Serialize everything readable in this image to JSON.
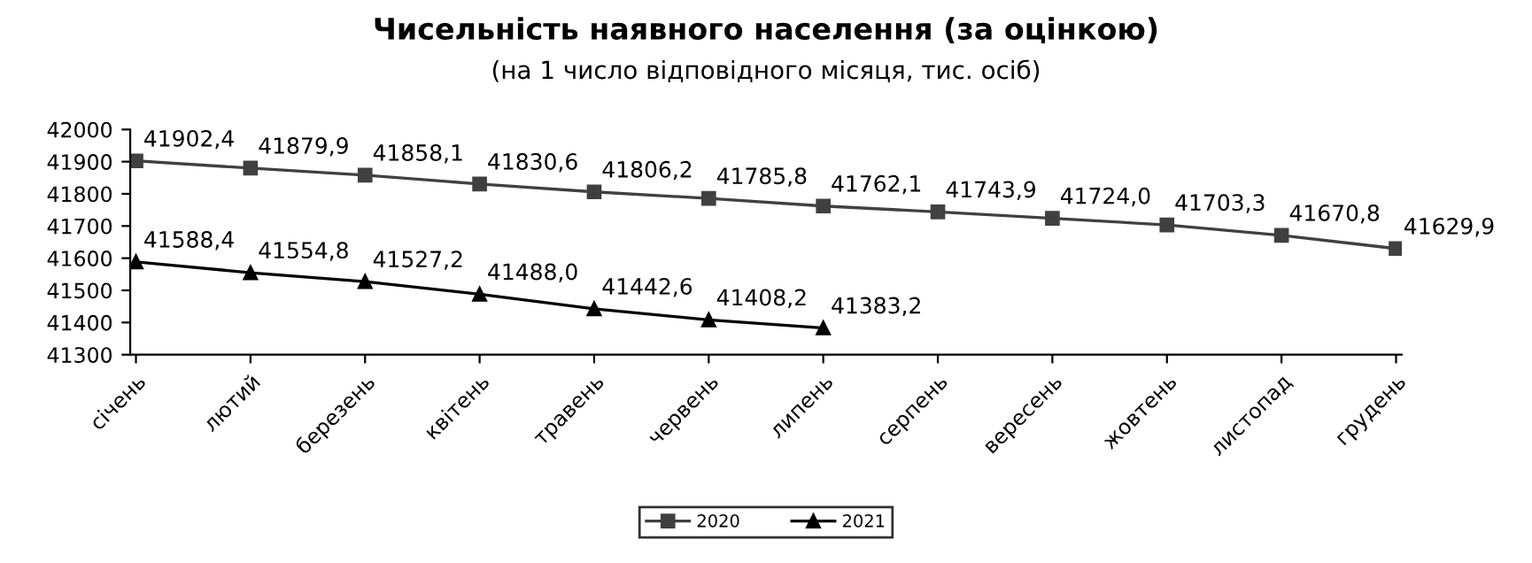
{
  "chart_data": {
    "type": "line",
    "title": "Чисельність наявного населення (за оцінкою)",
    "subtitle": "(на 1 число відповідного місяця, тис. осіб)",
    "categories": [
      "січень",
      "лютий",
      "березень",
      "квітень",
      "травень",
      "червень",
      "липень",
      "серпень",
      "вересень",
      "жовтень",
      "листопад",
      "грудень"
    ],
    "series": [
      {
        "name": "2020",
        "color": "#404040",
        "marker": "square",
        "values": [
          41902.4,
          41879.9,
          41858.1,
          41830.6,
          41806.2,
          41785.8,
          41762.1,
          41743.9,
          41724.0,
          41703.3,
          41670.8,
          41629.9
        ],
        "value_labels": [
          "41902,4",
          "41879,9",
          "41858,1",
          "41830,6",
          "41806,2",
          "41785,8",
          "41762,1",
          "41743,9",
          "41724,0",
          "41703,3",
          "41670,8",
          "41629,9"
        ]
      },
      {
        "name": "2021",
        "color": "#000000",
        "marker": "triangle",
        "values": [
          41588.4,
          41554.8,
          41527.2,
          41488.0,
          41442.6,
          41408.2,
          41383.2,
          null,
          null,
          null,
          null,
          null
        ],
        "value_labels": [
          "41588,4",
          "41554,8",
          "41527,2",
          "41488,0",
          "41442,6",
          "41408,2",
          "41383,2",
          null,
          null,
          null,
          null,
          null
        ]
      }
    ],
    "ylim": [
      41300,
      42000
    ],
    "yticks": [
      41300,
      41400,
      41500,
      41600,
      41700,
      41800,
      41900,
      42000
    ],
    "grid": false,
    "legend": "bottom",
    "line_style": "solid"
  }
}
